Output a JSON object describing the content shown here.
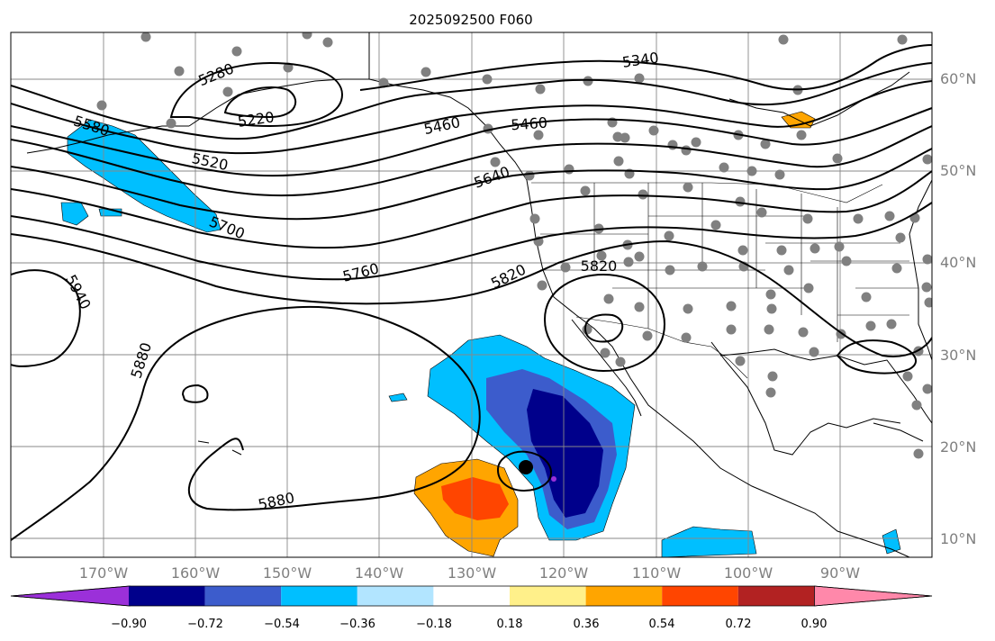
{
  "title": "2025092500 F060",
  "map": {
    "lon_range": [
      -180,
      -80
    ],
    "lat_range": [
      8,
      65
    ],
    "gridlines": true,
    "lon_ticks": [
      "170°W",
      "160°W",
      "150°W",
      "140°W",
      "130°W",
      "120°W",
      "110°W",
      "100°W",
      "90°W"
    ],
    "lat_ticks": [
      "60°N",
      "50°N",
      "40°N",
      "30°N",
      "20°N",
      "10°N"
    ],
    "contour_labels": [
      "5280",
      "5220",
      "5340",
      "5580",
      "5520",
      "5460",
      "5460",
      "5640",
      "5700",
      "5760",
      "5820",
      "5820",
      "5940",
      "5880",
      "5880"
    ]
  },
  "colorbar": {
    "ticks": [
      "−0.90",
      "−0.72",
      "−0.54",
      "−0.36",
      "−0.18",
      "0.18",
      "0.36",
      "0.54",
      "0.72",
      "0.90"
    ],
    "colors": [
      "#9b30d9",
      "#00008b",
      "#3c5ccc",
      "#00bfff",
      "#b2e5ff",
      "#ffffff",
      "#fff08a",
      "#ffa500",
      "#ff4500",
      "#b22222",
      "#ff88aa"
    ]
  },
  "colors": {
    "grid": "#888888",
    "coast": "#000000",
    "station": "#808080"
  }
}
